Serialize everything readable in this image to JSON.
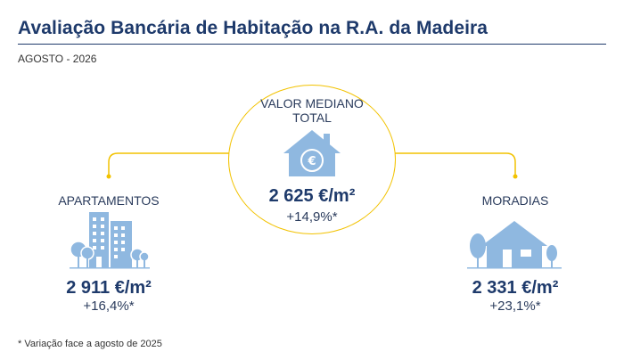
{
  "header": {
    "title": "Avaliação Bancária de Habitação na R.A. da Madeira",
    "subtitle": "AGOSTO - 2026"
  },
  "colors": {
    "navy": "#1e3a6b",
    "accent_yellow": "#f2c200",
    "icon_blue": "#8fb8e0"
  },
  "center": {
    "label_line1": "VALOR MEDIANO",
    "label_line2": "TOTAL",
    "icon": "house-euro-icon",
    "value": "2 625 €/m²",
    "change": "+14,9%*"
  },
  "left": {
    "label": "APARTAMENTOS",
    "icon": "apartment-buildings-icon",
    "value": "2 911 €/m²",
    "change": "+16,4%*"
  },
  "right": {
    "label": "MORADIAS",
    "icon": "house-trees-icon",
    "value": "2 331 €/m²",
    "change": "+23,1%*"
  },
  "footnote": "* Variação face a agosto de 2025"
}
